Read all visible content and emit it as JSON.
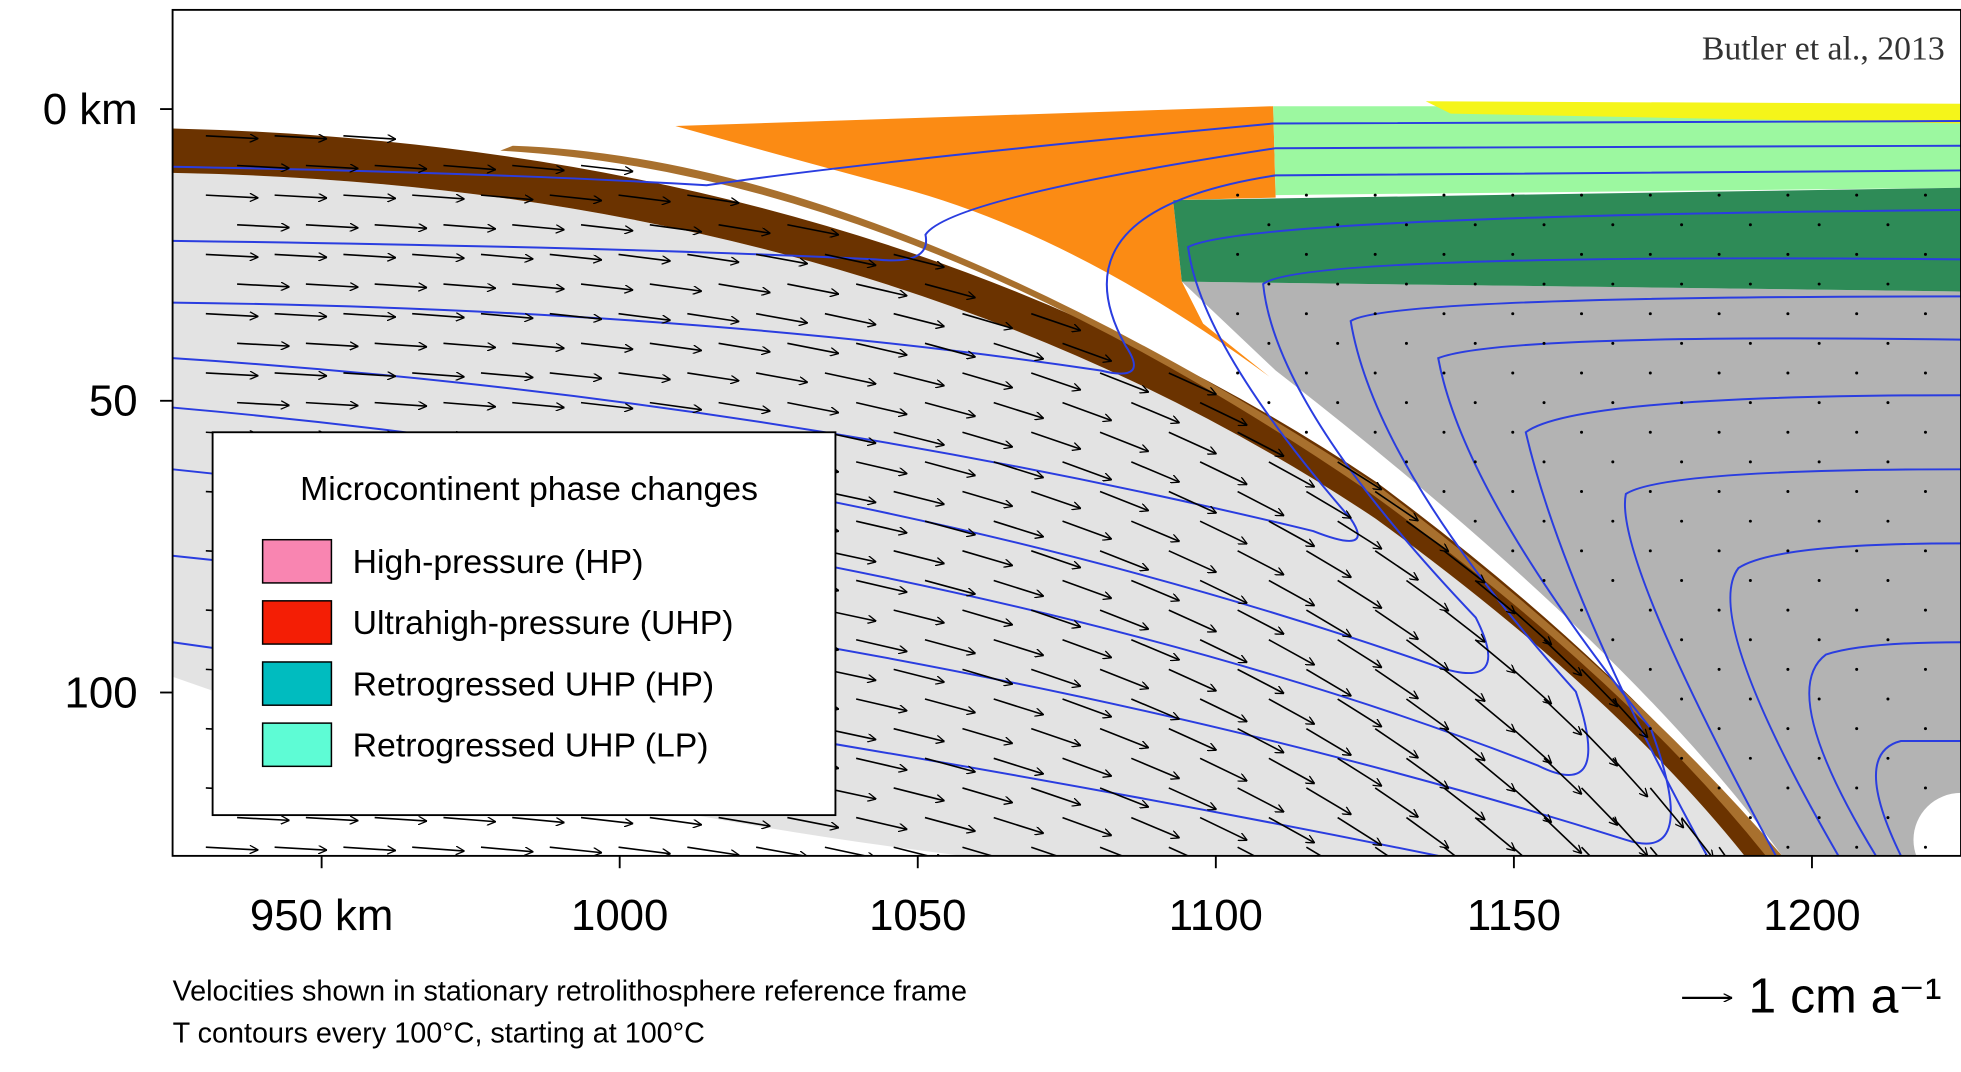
{
  "chart_data": {
    "type": "cross-section",
    "source": "Butler et al., 2013",
    "xlim": [
      925,
      1225
    ],
    "xticks": [
      {
        "value": 950,
        "label": "950 km"
      },
      1000,
      1050,
      1100,
      1150,
      1200
    ],
    "ylim": [
      -17,
      128
    ],
    "y_inverted": true,
    "yticks": [
      {
        "value": 0,
        "label": "0 km"
      },
      50,
      100
    ],
    "legend": {
      "title": "Microcontinent phase changes",
      "entries": [
        {
          "name": "High-pressure (HP)",
          "color": "#f985b1"
        },
        {
          "name": "Ultrahigh-pressure (UHP)",
          "color": "#f41e05"
        },
        {
          "name": "Retrogressed UHP (HP)",
          "color": "#00bcbf"
        },
        {
          "name": "Retrogressed UHP (LP)",
          "color": "#5efcd5"
        }
      ]
    },
    "notes": [
      "Velocities shown in stationary retrolithosphere reference frame",
      "T contours every 100°C, starting at 100°C"
    ],
    "scale_label": "1 cm a⁻¹"
  }
}
